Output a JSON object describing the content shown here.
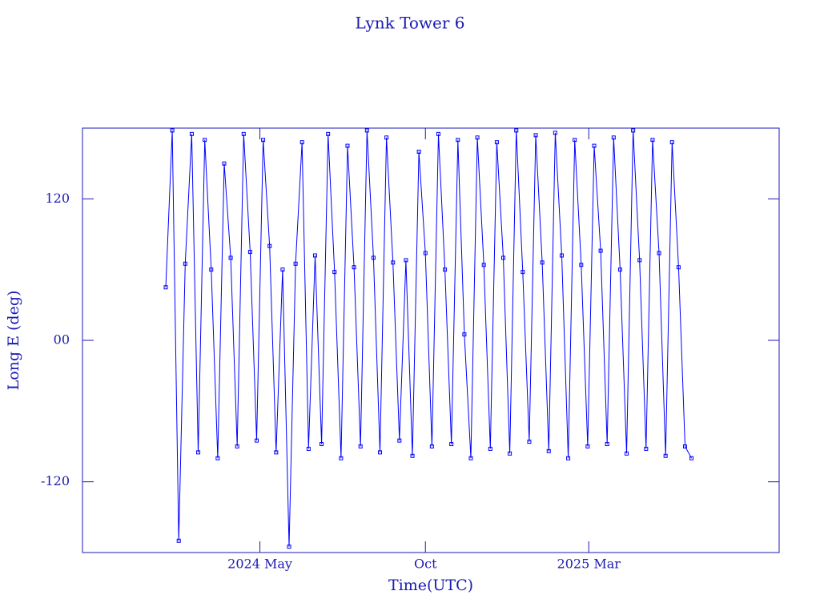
{
  "chart_data": {
    "type": "line-scatter",
    "title": "Lynk Tower 6",
    "x_label": "Time(UTC)",
    "y_label": "Long E (deg)",
    "color": "#0000ff",
    "x": [
      34,
      40,
      46,
      52,
      58,
      64,
      70,
      76,
      82,
      88,
      94,
      100,
      106,
      112,
      118,
      124,
      130,
      136,
      142,
      148,
      154,
      160,
      166,
      172,
      178,
      184,
      190,
      196,
      202,
      208,
      214,
      220,
      226,
      232,
      238,
      244,
      250,
      256,
      262,
      268,
      274,
      280,
      286,
      292,
      298,
      304,
      310,
      316,
      322,
      328,
      334,
      340,
      346,
      352,
      358,
      364,
      370,
      376,
      382,
      388,
      394,
      400,
      406,
      412,
      418,
      424,
      430,
      436,
      442,
      448,
      454,
      460,
      466,
      472,
      478,
      484,
      490,
      496,
      502,
      508,
      514,
      520
    ],
    "values": [
      45,
      178,
      -170,
      65,
      175,
      -95,
      170,
      60,
      -100,
      150,
      70,
      -90,
      175,
      75,
      -85,
      170,
      80,
      -95,
      60,
      -175,
      65,
      168,
      -92,
      72,
      -88,
      175,
      58,
      -100,
      165,
      62,
      -90,
      178,
      70,
      -95,
      172,
      66,
      -85,
      68,
      -98,
      160,
      74,
      -90,
      175,
      60,
      -88,
      170,
      5,
      -100,
      172,
      64,
      -92,
      168,
      70,
      -96,
      178,
      58,
      -86,
      174,
      66,
      -94,
      176,
      72,
      -100,
      170,
      64,
      -90,
      165,
      76,
      -88,
      172,
      60,
      -96,
      178,
      68,
      -92,
      170,
      74,
      -98,
      168,
      62,
      -90,
      -100
    ],
    "xlim": [
      -43,
      601
    ],
    "ylim": [
      -180,
      180
    ],
    "xticks": [
      {
        "value": 121,
        "label": "2024 May"
      },
      {
        "value": 274,
        "label": "Oct"
      },
      {
        "value": 425,
        "label": "2025 Mar"
      }
    ],
    "yticks": [
      -120,
      {
        "value": 0,
        "label": "00"
      },
      120
    ]
  }
}
